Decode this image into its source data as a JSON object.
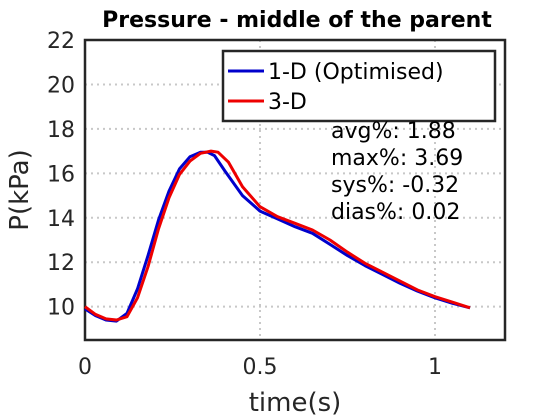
{
  "chart_data": {
    "type": "line",
    "title": "Pressure - middle of the parent",
    "xlabel": "time(s)",
    "ylabel": "P(kPa)",
    "xlim": [
      0,
      1.2
    ],
    "ylim": [
      8.5,
      22
    ],
    "xticks": [
      0,
      0.5,
      1
    ],
    "xtick_labels": [
      "0",
      "0.5",
      "1"
    ],
    "yticks": [
      10,
      12,
      14,
      16,
      18,
      20,
      22
    ],
    "ytick_labels": [
      "10",
      "12",
      "14",
      "16",
      "18",
      "20",
      "22"
    ],
    "grid": true,
    "legend_position": "top-right",
    "series": [
      {
        "name": "1-D (Optimised)",
        "color": "#0000CC",
        "x": [
          0,
          0.03,
          0.06,
          0.09,
          0.12,
          0.15,
          0.18,
          0.21,
          0.24,
          0.27,
          0.3,
          0.33,
          0.35,
          0.37,
          0.4,
          0.45,
          0.5,
          0.55,
          0.6,
          0.65,
          0.7,
          0.75,
          0.8,
          0.85,
          0.9,
          0.95,
          1.0,
          1.05,
          1.1
        ],
        "y": [
          9.9,
          9.6,
          9.4,
          9.35,
          9.7,
          10.8,
          12.3,
          13.9,
          15.2,
          16.2,
          16.75,
          16.95,
          16.95,
          16.8,
          16.1,
          15.0,
          14.3,
          13.95,
          13.6,
          13.3,
          12.8,
          12.3,
          11.85,
          11.45,
          11.05,
          10.7,
          10.4,
          10.15,
          9.95
        ]
      },
      {
        "name": "3-D",
        "color": "#EE0000",
        "x": [
          0,
          0.03,
          0.06,
          0.09,
          0.12,
          0.15,
          0.18,
          0.21,
          0.24,
          0.27,
          0.3,
          0.33,
          0.36,
          0.38,
          0.41,
          0.45,
          0.5,
          0.55,
          0.6,
          0.65,
          0.7,
          0.75,
          0.8,
          0.85,
          0.9,
          0.95,
          1.0,
          1.05,
          1.1
        ],
        "y": [
          10.0,
          9.65,
          9.45,
          9.4,
          9.55,
          10.4,
          11.8,
          13.5,
          14.9,
          15.95,
          16.55,
          16.9,
          17.0,
          16.95,
          16.5,
          15.4,
          14.5,
          14.05,
          13.75,
          13.45,
          13.0,
          12.45,
          11.95,
          11.55,
          11.15,
          10.75,
          10.45,
          10.2,
          9.95
        ]
      }
    ],
    "annotations": [
      "avg%: 1.88",
      "max%: 3.69",
      "sys%: -0.32",
      "dias%: 0.02"
    ]
  }
}
